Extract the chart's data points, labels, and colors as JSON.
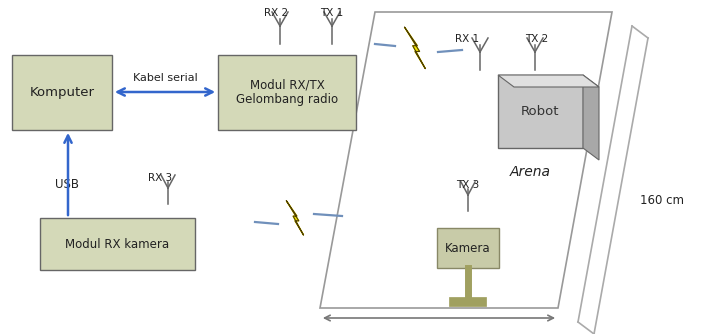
{
  "bg_color": "#ffffff",
  "box_gc": "#d4d9b8",
  "arrow_blue": "#3366cc",
  "line_gray": "#888888",
  "ant_color": "#666666",
  "yellow": "#f5e800",
  "yellow_edge": "#504000",
  "radio_blue": "#7090bb",
  "kabel_serial": "Kabel serial",
  "usb": "USB",
  "arena": "Arena",
  "dim": "160 cm",
  "figw": 7.1,
  "figh": 3.34,
  "dpi": 100
}
